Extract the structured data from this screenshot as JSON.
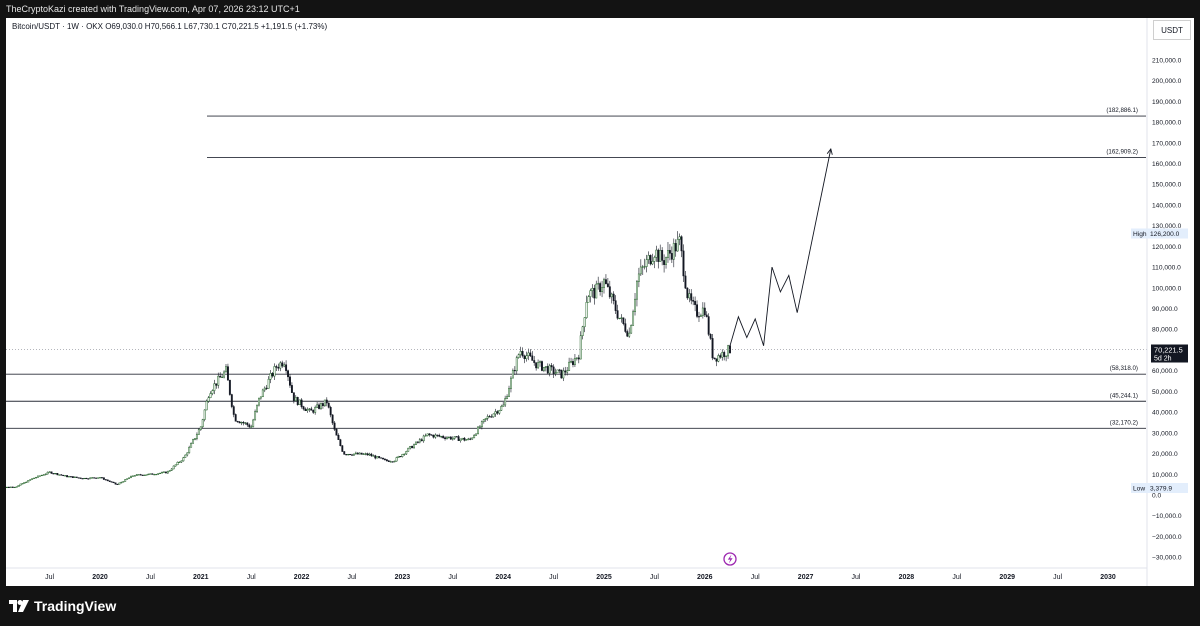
{
  "caption": "TheCryptoKazi created with TradingView.com, Apr 07, 2026 23:12 UTC+1",
  "symbol_line": "Bitcoin/USDT · 1W · OKX  O69,030.0  H70,566.1  L67,730.1  C70,221.5  +1,191.5 (+1.73%)",
  "currency": "USDT",
  "brand": "TradingView",
  "colors": {
    "up": "#1b5e20",
    "down": "#131722",
    "axis_text": "#131722",
    "line": "#131722"
  },
  "chart_data": {
    "type": "candlestick",
    "title": "",
    "xlabel": "",
    "ylabel": "",
    "ylim": [
      -35000,
      225000
    ],
    "x_ticks": [
      "Jul",
      "2020",
      "Jul",
      "2021",
      "Jul",
      "2022",
      "Jul",
      "2023",
      "Jul",
      "2024",
      "Jul",
      "2025",
      "Jul",
      "2026",
      "Jul",
      "2027",
      "Jul",
      "2028",
      "Jul",
      "2029",
      "Jul",
      "2030"
    ],
    "y_ticks": [
      "210,000.0",
      "200,000.0",
      "190,000.0",
      "180,000.0",
      "170,000.0",
      "160,000.0",
      "150,000.0",
      "140,000.0",
      "130,000.0",
      "120,000.0",
      "110,000.0",
      "100,000.0",
      "90,000.0",
      "80,000.0",
      "60,000.0",
      "50,000.0",
      "40,000.0",
      "30,000.0",
      "20,000.0",
      "10,000.0",
      "0.0",
      "−10,000.0",
      "−20,000.0",
      "−30,000.0"
    ],
    "price_path": [
      [
        "2019-01",
        3500
      ],
      [
        "2019-03",
        4000
      ],
      [
        "2019-05",
        8000
      ],
      [
        "2019-07",
        11000
      ],
      [
        "2019-09",
        9000
      ],
      [
        "2019-11",
        8000
      ],
      [
        "2020-01",
        8500
      ],
      [
        "2020-03",
        5000
      ],
      [
        "2020-05",
        9500
      ],
      [
        "2020-07",
        10000
      ],
      [
        "2020-09",
        11000
      ],
      [
        "2020-11",
        18000
      ],
      [
        "2021-01",
        33000
      ],
      [
        "2021-02",
        50000
      ],
      [
        "2021-04",
        60000
      ],
      [
        "2021-05",
        37000
      ],
      [
        "2021-07",
        33000
      ],
      [
        "2021-08",
        47000
      ],
      [
        "2021-10",
        62000
      ],
      [
        "2021-11",
        65000
      ],
      [
        "2021-12",
        47000
      ],
      [
        "2022-02",
        40000
      ],
      [
        "2022-04",
        45000
      ],
      [
        "2022-05",
        30000
      ],
      [
        "2022-06",
        20000
      ],
      [
        "2022-09",
        19500
      ],
      [
        "2022-11",
        16500
      ],
      [
        "2022-12",
        16600
      ],
      [
        "2023-02",
        23000
      ],
      [
        "2023-04",
        29000
      ],
      [
        "2023-06",
        28000
      ],
      [
        "2023-09",
        26500
      ],
      [
        "2023-11",
        37000
      ],
      [
        "2024-01",
        43000
      ],
      [
        "2024-03",
        70000
      ],
      [
        "2024-05",
        63000
      ],
      [
        "2024-08",
        58000
      ],
      [
        "2024-10",
        68000
      ],
      [
        "2024-11",
        97000
      ],
      [
        "2024-12",
        98000
      ],
      [
        "2025-01",
        103000
      ],
      [
        "2025-03",
        84000
      ],
      [
        "2025-04",
        78000
      ],
      [
        "2025-05",
        105000
      ],
      [
        "2025-07",
        118000
      ],
      [
        "2025-08",
        113000
      ],
      [
        "2025-10",
        122000
      ],
      [
        "2025-11",
        95000
      ],
      [
        "2025-12",
        88000
      ],
      [
        "2026-01",
        90000
      ],
      [
        "2026-02",
        66000
      ],
      [
        "2026-03",
        68000
      ],
      [
        "2026-04",
        70221.5
      ]
    ],
    "current_price": {
      "label": "70,221.5",
      "countdown": "5d 2h",
      "value": 70221.5
    },
    "high_marker": {
      "label": "High",
      "value_label": "126,200.0",
      "value": 126200
    },
    "low_marker": {
      "label": "Low",
      "value_label": "3,379.9",
      "value": 3379.9
    },
    "levels": [
      {
        "label": "(182,886.1)",
        "value": 182886.1
      },
      {
        "label": "(162,909.2)",
        "value": 162909.2
      },
      {
        "label": "(58,318.0)",
        "value": 58318.0
      },
      {
        "label": "(45,244.1)",
        "value": 45244.1
      },
      {
        "label": "(32,170.2)",
        "value": 32170.2
      }
    ],
    "projection": [
      [
        "2026-04",
        72000
      ],
      [
        "2026-05",
        86000
      ],
      [
        "2026-06",
        76000
      ],
      [
        "2026-07",
        85000
      ],
      [
        "2026-08",
        72000
      ],
      [
        "2026-09",
        110000
      ],
      [
        "2026-10",
        98000
      ],
      [
        "2026-11",
        106000
      ],
      [
        "2026-12",
        88000
      ],
      [
        "2027-04",
        167000
      ]
    ],
    "grid": false,
    "legend": "none"
  }
}
